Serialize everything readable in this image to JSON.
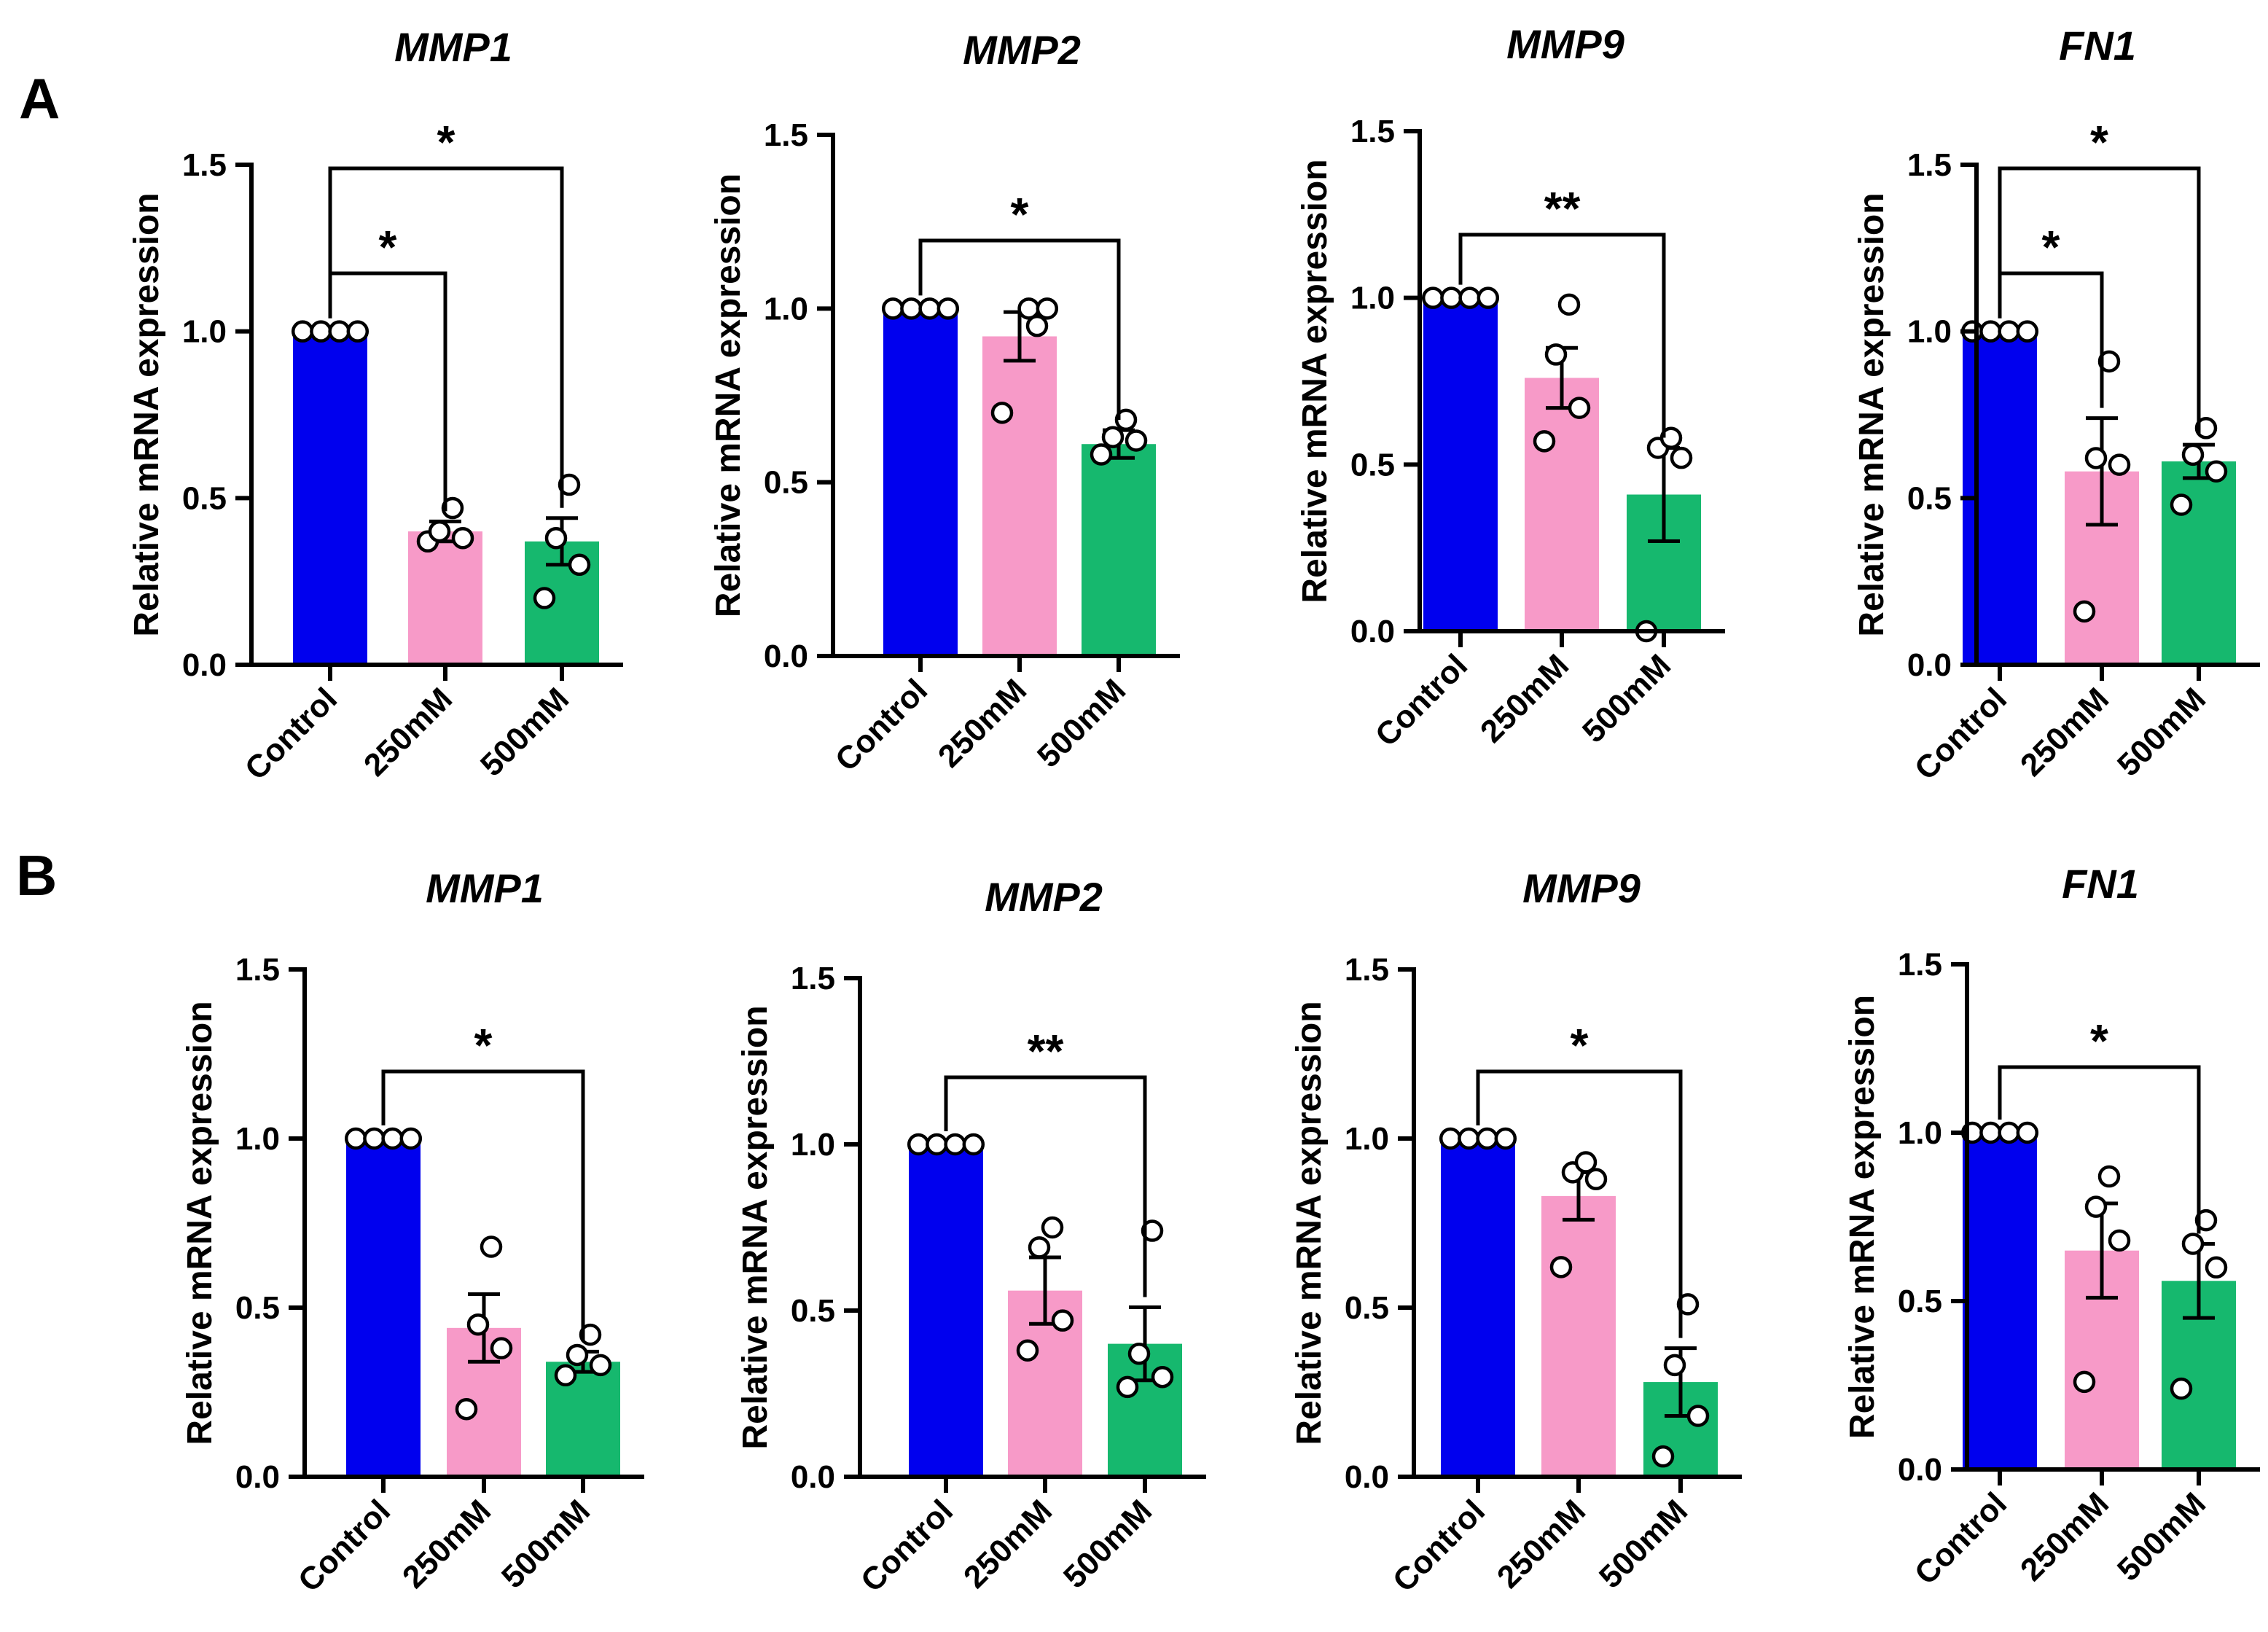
{
  "figure": {
    "panels": [
      {
        "letter": "A"
      },
      {
        "letter": "B"
      }
    ]
  },
  "chart_data": [
    {
      "panel": "A",
      "type": "bar",
      "title": "MMP1",
      "ylabel": "Relative mRNA expression",
      "categories": [
        "Control",
        "250mM",
        "500mM"
      ],
      "colors": [
        "#0000ee",
        "#f79ac8",
        "#16b86e"
      ],
      "values": [
        1.0,
        0.4,
        0.37
      ],
      "errors": [
        0.0,
        0.03,
        0.07
      ],
      "points": [
        [
          1,
          1,
          1,
          1
        ],
        [
          0.37,
          0.38,
          0.4,
          0.47
        ],
        [
          0.2,
          0.3,
          0.38,
          0.54
        ]
      ],
      "ylim": [
        0,
        1.5
      ],
      "yticks": [
        "0.0",
        "0.5",
        "1.0",
        "1.5"
      ],
      "comparisons": [
        {
          "from": 0,
          "to": 1,
          "label": "*"
        },
        {
          "from": 0,
          "to": 2,
          "label": "*"
        }
      ]
    },
    {
      "panel": "A",
      "type": "bar",
      "title": "MMP2",
      "ylabel": "Relative mRNA expression",
      "categories": [
        "Control",
        "250mM",
        "500mM"
      ],
      "colors": [
        "#0000ee",
        "#f79ac8",
        "#16b86e"
      ],
      "values": [
        1.0,
        0.92,
        0.61
      ],
      "errors": [
        0.0,
        0.07,
        0.04
      ],
      "points": [
        [
          1,
          1,
          1,
          1
        ],
        [
          0.7,
          0.95,
          1.0,
          1.0
        ],
        [
          0.58,
          0.62,
          0.63,
          0.68
        ]
      ],
      "ylim": [
        0,
        1.5
      ],
      "yticks": [
        "0.0",
        "0.5",
        "1.0",
        "1.5"
      ],
      "comparisons": [
        {
          "from": 0,
          "to": 2,
          "label": "*"
        }
      ]
    },
    {
      "panel": "A",
      "type": "bar",
      "title": "MMP9",
      "ylabel": "Relative mRNA expression",
      "categories": [
        "Control",
        "250mM",
        "500mM"
      ],
      "colors": [
        "#0000ee",
        "#f79ac8",
        "#16b86e"
      ],
      "values": [
        1.0,
        0.76,
        0.41
      ],
      "errors": [
        0.0,
        0.09,
        0.14
      ],
      "points": [
        [
          1,
          1,
          1,
          1
        ],
        [
          0.57,
          0.67,
          0.83,
          0.98
        ],
        [
          0.0,
          0.52,
          0.55,
          0.58
        ]
      ],
      "ylim": [
        0,
        1.5
      ],
      "yticks": [
        "0.0",
        "0.5",
        "1.0",
        "1.5"
      ],
      "comparisons": [
        {
          "from": 0,
          "to": 2,
          "label": "**"
        }
      ]
    },
    {
      "panel": "A",
      "type": "bar",
      "title": "FN1",
      "ylabel": "Relative mRNA expression",
      "categories": [
        "Control",
        "250mM",
        "500mM"
      ],
      "colors": [
        "#0000ee",
        "#f79ac8",
        "#16b86e"
      ],
      "values": [
        1.0,
        0.58,
        0.61
      ],
      "errors": [
        0.0,
        0.16,
        0.05
      ],
      "points": [
        [
          1,
          1,
          1,
          1
        ],
        [
          0.16,
          0.6,
          0.62,
          0.91
        ],
        [
          0.48,
          0.58,
          0.63,
          0.71
        ]
      ],
      "ylim": [
        0,
        1.5
      ],
      "yticks": [
        "0.0",
        "0.5",
        "1.0",
        "1.5"
      ],
      "comparisons": [
        {
          "from": 0,
          "to": 1,
          "label": "*"
        },
        {
          "from": 0,
          "to": 2,
          "label": "*"
        }
      ]
    },
    {
      "panel": "B",
      "type": "bar",
      "title": "MMP1",
      "ylabel": "Relative mRNA expression",
      "categories": [
        "Control",
        "250mM",
        "500mM"
      ],
      "colors": [
        "#0000ee",
        "#f79ac8",
        "#16b86e"
      ],
      "values": [
        1.0,
        0.44,
        0.34
      ],
      "errors": [
        0.0,
        0.1,
        0.03
      ],
      "points": [
        [
          1,
          1,
          1,
          1
        ],
        [
          0.2,
          0.38,
          0.45,
          0.68
        ],
        [
          0.3,
          0.33,
          0.36,
          0.42
        ]
      ],
      "ylim": [
        0,
        1.5
      ],
      "yticks": [
        "0.0",
        "0.5",
        "1.0",
        "1.5"
      ],
      "comparisons": [
        {
          "from": 0,
          "to": 2,
          "label": "*"
        }
      ]
    },
    {
      "panel": "B",
      "type": "bar",
      "title": "MMP2",
      "ylabel": "Relative mRNA expression",
      "categories": [
        "Control",
        "250mM",
        "500mM"
      ],
      "colors": [
        "#0000ee",
        "#f79ac8",
        "#16b86e"
      ],
      "values": [
        1.0,
        0.56,
        0.4
      ],
      "errors": [
        0.0,
        0.1,
        0.11
      ],
      "points": [
        [
          1,
          1,
          1,
          1
        ],
        [
          0.38,
          0.47,
          0.69,
          0.75
        ],
        [
          0.27,
          0.3,
          0.37,
          0.74
        ]
      ],
      "ylim": [
        0,
        1.5
      ],
      "yticks": [
        "0.0",
        "0.5",
        "1.0",
        "1.5"
      ],
      "comparisons": [
        {
          "from": 0,
          "to": 2,
          "label": "**"
        }
      ]
    },
    {
      "panel": "B",
      "type": "bar",
      "title": "MMP9",
      "ylabel": "Relative mRNA expression",
      "categories": [
        "Control",
        "250mM",
        "500mM"
      ],
      "colors": [
        "#0000ee",
        "#f79ac8",
        "#16b86e"
      ],
      "values": [
        1.0,
        0.83,
        0.28
      ],
      "errors": [
        0.0,
        0.07,
        0.1
      ],
      "points": [
        [
          1,
          1,
          1,
          1
        ],
        [
          0.62,
          0.88,
          0.9,
          0.93
        ],
        [
          0.06,
          0.18,
          0.33,
          0.51
        ]
      ],
      "ylim": [
        0,
        1.5
      ],
      "yticks": [
        "0.0",
        "0.5",
        "1.0",
        "1.5"
      ],
      "comparisons": [
        {
          "from": 0,
          "to": 2,
          "label": "*"
        }
      ]
    },
    {
      "panel": "B",
      "type": "bar",
      "title": "FN1",
      "ylabel": "Relative mRNA expression",
      "categories": [
        "Control",
        "250mM",
        "500mM"
      ],
      "colors": [
        "#0000ee",
        "#f79ac8",
        "#16b86e"
      ],
      "values": [
        1.0,
        0.65,
        0.56
      ],
      "errors": [
        0.0,
        0.14,
        0.11
      ],
      "points": [
        [
          1,
          1,
          1,
          1
        ],
        [
          0.26,
          0.68,
          0.78,
          0.87
        ],
        [
          0.24,
          0.6,
          0.67,
          0.74
        ]
      ],
      "ylim": [
        0,
        1.5
      ],
      "yticks": [
        "0.0",
        "0.5",
        "1.0",
        "1.5"
      ],
      "comparisons": [
        {
          "from": 0,
          "to": 2,
          "label": "*"
        }
      ]
    }
  ]
}
